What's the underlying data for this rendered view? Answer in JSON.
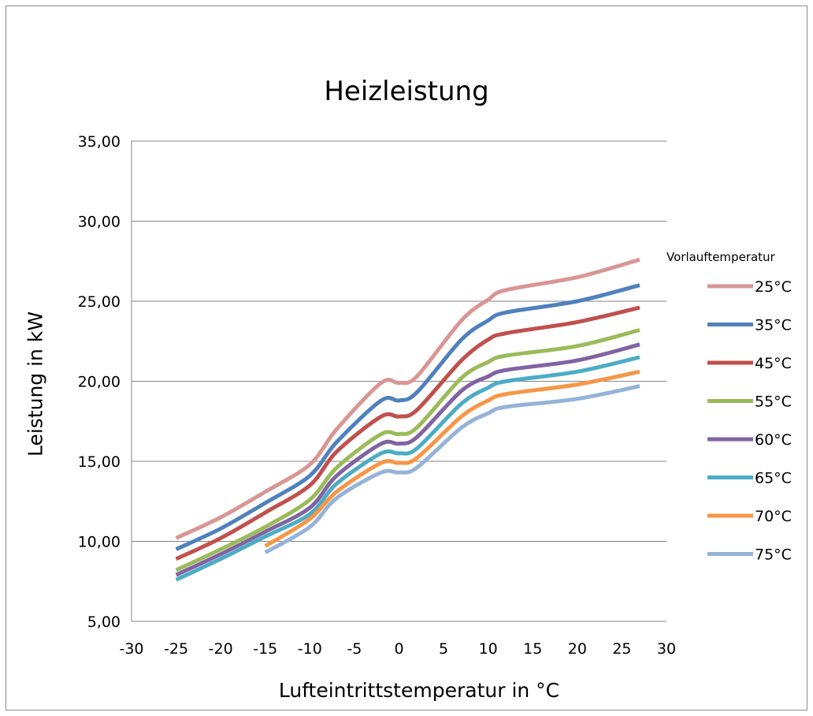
{
  "chart_data": {
    "type": "line",
    "title": "Heizleistung",
    "xlabel": "Lufteintrittstemperatur  in °C",
    "ylabel": "Leistung in kW",
    "xlim": [
      -30,
      30
    ],
    "ylim": [
      5,
      35
    ],
    "xticks": [
      "-30",
      "-25",
      "-20",
      "-15",
      "-10",
      "-5",
      "0",
      "5",
      "10",
      "15",
      "20",
      "25",
      "30"
    ],
    "yticks": [
      "5,00",
      "10,00",
      "15,00",
      "20,00",
      "25,00",
      "30,00",
      "35,00"
    ],
    "grid": "horizontal",
    "legend": {
      "title": "Vorlauftemperatur",
      "position": "right"
    },
    "series": [
      {
        "name": "25°C",
        "color": "#d99694",
        "x": [
          -25,
          -20,
          -15,
          -10,
          -7,
          -2,
          0,
          2,
          7,
          10,
          12,
          20,
          27
        ],
        "y": [
          10.2,
          11.5,
          13.1,
          14.8,
          17.0,
          19.9,
          19.9,
          20.3,
          23.8,
          25.1,
          25.7,
          26.5,
          27.6
        ]
      },
      {
        "name": "35°C",
        "color": "#4f81bd",
        "x": [
          -25,
          -20,
          -15,
          -10,
          -7,
          -2,
          0,
          2,
          7,
          10,
          12,
          20,
          27
        ],
        "y": [
          9.5,
          10.8,
          12.4,
          14.1,
          16.2,
          18.8,
          18.8,
          19.3,
          22.6,
          23.8,
          24.3,
          25.0,
          26.0
        ]
      },
      {
        "name": "45°C",
        "color": "#c0504d",
        "x": [
          -25,
          -20,
          -15,
          -10,
          -7,
          -2,
          0,
          2,
          7,
          10,
          12,
          20,
          27
        ],
        "y": [
          8.9,
          10.2,
          11.8,
          13.5,
          15.6,
          17.8,
          17.8,
          18.2,
          21.3,
          22.6,
          23.0,
          23.7,
          24.6
        ]
      },
      {
        "name": "55°C",
        "color": "#9bbb59",
        "x": [
          -25,
          -20,
          -15,
          -10,
          -7,
          -2,
          0,
          2,
          7,
          10,
          12,
          20,
          27
        ],
        "y": [
          8.2,
          9.5,
          10.9,
          12.6,
          14.6,
          16.7,
          16.7,
          17.1,
          20.2,
          21.2,
          21.6,
          22.2,
          23.2
        ]
      },
      {
        "name": "60°C",
        "color": "#8064a2",
        "x": [
          -25,
          -20,
          -15,
          -10,
          -7,
          -2,
          0,
          2,
          7,
          10,
          12,
          20,
          27
        ],
        "y": [
          7.9,
          9.2,
          10.6,
          12.1,
          14.1,
          16.1,
          16.1,
          16.5,
          19.4,
          20.3,
          20.7,
          21.3,
          22.3
        ]
      },
      {
        "name": "65°C",
        "color": "#4bacc6",
        "x": [
          -25,
          -20,
          -15,
          -10,
          -7,
          -2,
          0,
          2,
          7,
          10,
          12,
          20,
          27
        ],
        "y": [
          7.6,
          8.9,
          10.3,
          11.7,
          13.6,
          15.5,
          15.5,
          15.8,
          18.6,
          19.6,
          20.0,
          20.6,
          21.5
        ]
      },
      {
        "name": "70°C",
        "color": "#f79646",
        "x": [
          -15,
          -10,
          -7,
          -2,
          0,
          2,
          7,
          10,
          12,
          20,
          27
        ],
        "y": [
          9.7,
          11.4,
          13.1,
          14.9,
          14.9,
          15.2,
          17.8,
          18.8,
          19.2,
          19.8,
          20.6
        ]
      },
      {
        "name": "75°C",
        "color": "#95b3d7",
        "x": [
          -15,
          -10,
          -7,
          -2,
          0,
          2,
          7,
          10,
          12,
          20,
          27
        ],
        "y": [
          9.3,
          10.9,
          12.7,
          14.3,
          14.3,
          14.6,
          17.1,
          18.0,
          18.4,
          18.9,
          19.7
        ]
      }
    ]
  }
}
